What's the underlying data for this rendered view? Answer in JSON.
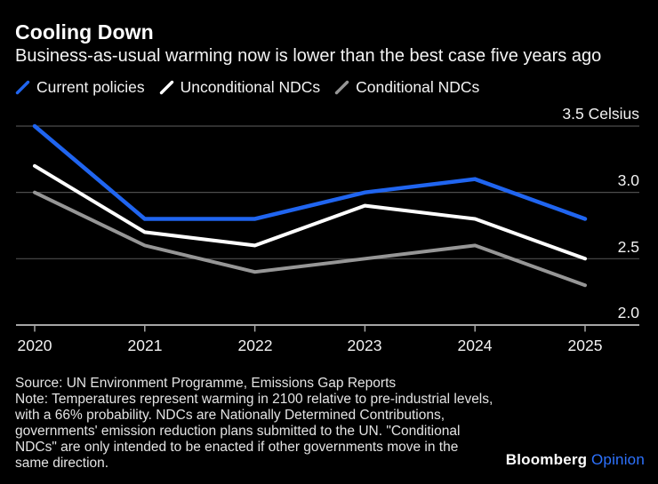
{
  "header": {
    "title": "Cooling Down",
    "subtitle": "Business-as-usual warming now is lower than the best case five years ago"
  },
  "legend": [
    {
      "label": "Current policies",
      "color": "#2065f0"
    },
    {
      "label": "Unconditional NDCs",
      "color": "#ffffff"
    },
    {
      "label": "Conditional NDCs",
      "color": "#969696"
    }
  ],
  "chart_data": {
    "type": "line",
    "title": "Cooling Down",
    "subtitle": "Business-as-usual warming now is lower than the best case five years ago",
    "unit": "Celsius",
    "categories": [
      "2020",
      "2021",
      "2022",
      "2023",
      "2024",
      "2025"
    ],
    "series": [
      {
        "name": "Current policies",
        "color": "#2065f0",
        "values": [
          3.5,
          2.8,
          2.8,
          3.0,
          3.1,
          2.8
        ]
      },
      {
        "name": "Unconditional NDCs",
        "color": "#ffffff",
        "values": [
          3.2,
          2.7,
          2.6,
          2.9,
          2.8,
          2.5
        ]
      },
      {
        "name": "Conditional NDCs",
        "color": "#969696",
        "values": [
          3.0,
          2.6,
          2.4,
          2.5,
          2.6,
          2.3
        ]
      }
    ],
    "y_ticks": [
      {
        "value": 3.5,
        "label": "3.5 Celsius"
      },
      {
        "value": 3.0,
        "label": "3.0"
      },
      {
        "value": 2.5,
        "label": "2.5"
      },
      {
        "value": 2.0,
        "label": "2.0"
      }
    ],
    "ylim": [
      2.0,
      3.5
    ],
    "grid": "horizontal",
    "legend_position": "top"
  },
  "footer": {
    "source": "Source: UN Environment Programme, Emissions Gap Reports",
    "note_lines": [
      "Note: Temperatures represent warming in 2100 relative to pre-industrial levels,",
      "with a 66% probability. NDCs are Nationally Determined Contributions,",
      "governments' emission reduction plans submitted to the UN. \"Conditional",
      "NDCs\" are only intended to be enacted if other governments move in the",
      "same direction."
    ],
    "brand": {
      "name": "Bloomberg",
      "division": "Opinion",
      "division_color": "#2d72ff"
    }
  },
  "colors": {
    "background": "#000000",
    "gridline": "#4d4d4d",
    "axis": "#a6a6a6",
    "text_primary": "#ffffff"
  }
}
